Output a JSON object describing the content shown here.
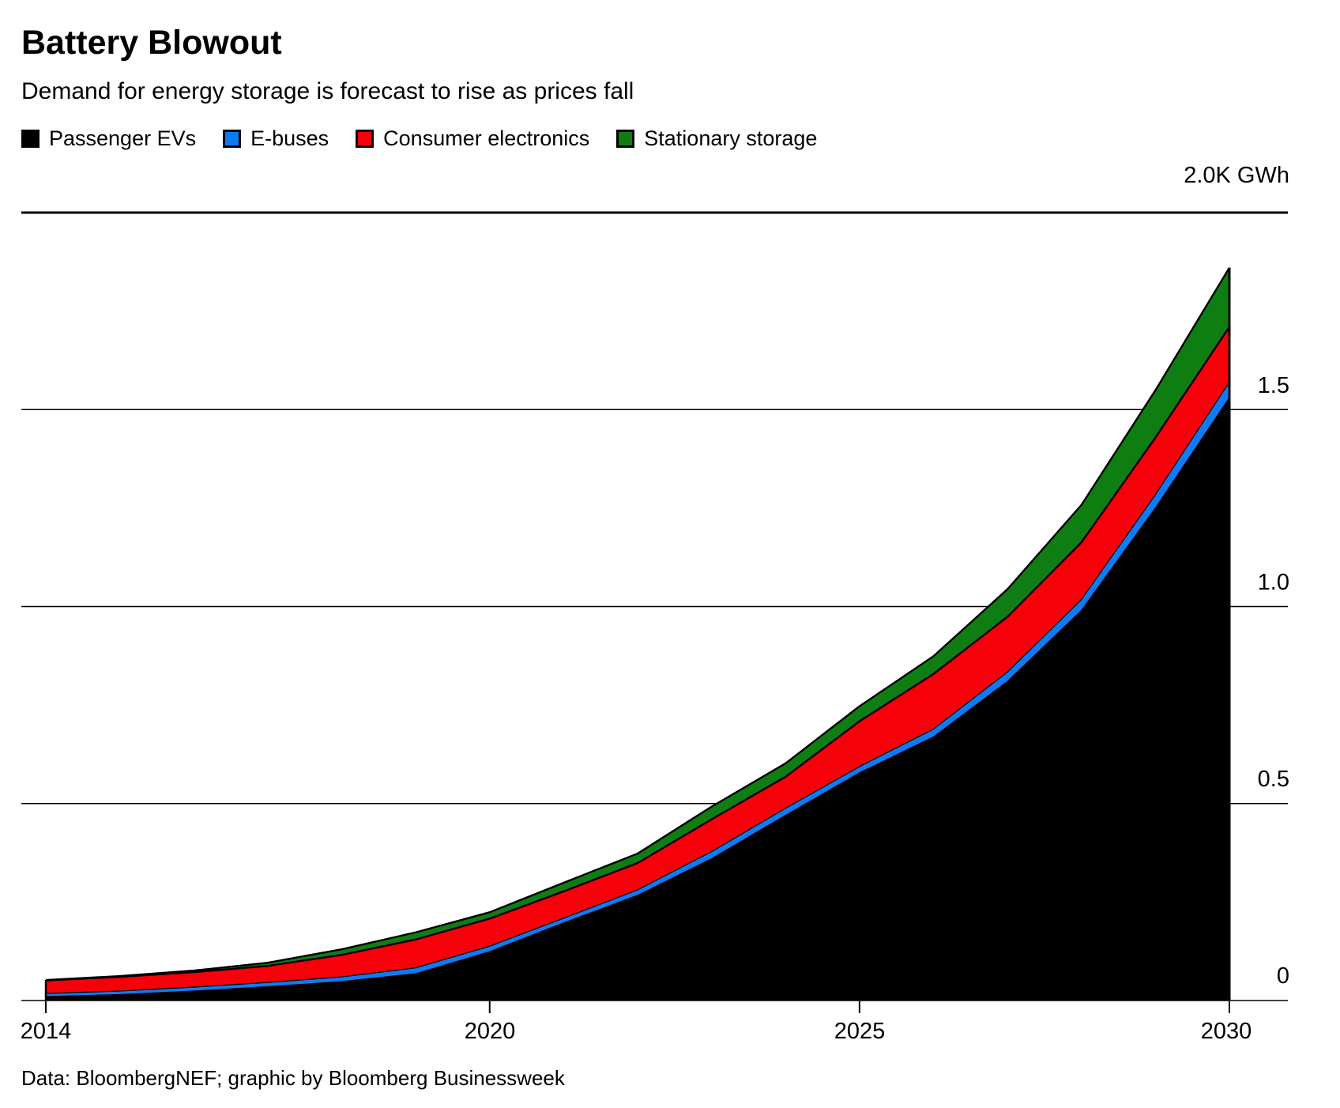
{
  "header": {
    "title": "Battery Blowout",
    "subtitle": "Demand for energy storage is forecast to rise as prices fall"
  },
  "legend": {
    "items": [
      {
        "label": "Passenger EVs",
        "color": "#000000"
      },
      {
        "label": "E-buses",
        "color": "#0e7bf5"
      },
      {
        "label": "Consumer electronics",
        "color": "#f60009"
      },
      {
        "label": "Stationary storage",
        "color": "#0f7e12"
      }
    ]
  },
  "axes": {
    "y_top_label": "2.0K GWh",
    "y_tick_15": "1.5",
    "y_tick_10": "1.0",
    "y_tick_05": "0.5",
    "y_tick_0": "0",
    "x_tick_2014": "2014",
    "x_tick_2020": "2020",
    "x_tick_2025": "2025",
    "x_tick_2030": "2030"
  },
  "footer": {
    "credit": "Data: BloombergNEF; graphic by Bloomberg Businessweek"
  },
  "chart_data": {
    "type": "area",
    "stacked": true,
    "title": "Battery Blowout",
    "subtitle": "Demand for energy storage is forecast to rise as prices fall",
    "unit": "K GWh",
    "ylabel": "2.0K GWh",
    "xlim": [
      2014,
      2030
    ],
    "ylim": [
      0,
      2.0
    ],
    "grid": true,
    "y_gridlines": [
      0,
      0.5,
      1.0,
      1.5,
      2.0
    ],
    "y_tick_labels": [
      "0",
      "0.5",
      "1.0",
      "1.5",
      "2.0K GWh"
    ],
    "x_tick_years": [
      2014,
      2020,
      2025,
      2030
    ],
    "legend_position": "top-left",
    "x": [
      2014,
      2015,
      2016,
      2017,
      2018,
      2019,
      2020,
      2021,
      2022,
      2023,
      2024,
      2025,
      2026,
      2027,
      2028,
      2029,
      2030
    ],
    "series": [
      {
        "name": "Passenger EVs",
        "color": "#000000",
        "values": [
          0.01,
          0.015,
          0.024,
          0.035,
          0.048,
          0.068,
          0.124,
          0.197,
          0.267,
          0.36,
          0.47,
          0.578,
          0.669,
          0.81,
          0.99,
          1.25,
          1.53
        ]
      },
      {
        "name": "E-buses",
        "color": "#0e7bf5",
        "values": [
          0.008,
          0.009,
          0.01,
          0.011,
          0.012,
          0.015,
          0.014,
          0.012,
          0.014,
          0.018,
          0.018,
          0.016,
          0.02,
          0.024,
          0.028,
          0.034,
          0.04
        ]
      },
      {
        "name": "Consumer electronics",
        "color": "#f60009",
        "values": [
          0.033,
          0.036,
          0.038,
          0.042,
          0.056,
          0.072,
          0.07,
          0.068,
          0.068,
          0.082,
          0.08,
          0.115,
          0.14,
          0.14,
          0.145,
          0.145,
          0.14
        ]
      },
      {
        "name": "Stationary storage",
        "color": "#0f7e12",
        "values": [
          0.001,
          0.002,
          0.004,
          0.008,
          0.014,
          0.018,
          0.016,
          0.022,
          0.024,
          0.032,
          0.034,
          0.038,
          0.045,
          0.07,
          0.095,
          0.12,
          0.15
        ]
      }
    ],
    "totals": [
      0.052,
      0.062,
      0.076,
      0.096,
      0.13,
      0.173,
      0.224,
      0.299,
      0.373,
      0.492,
      0.602,
      0.747,
      0.874,
      1.044,
      1.258,
      1.549,
      1.86
    ]
  }
}
